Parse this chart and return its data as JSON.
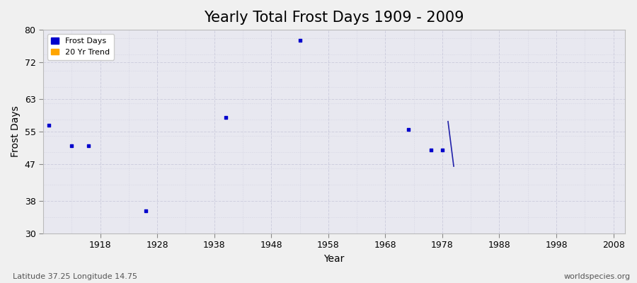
{
  "title": "Yearly Total Frost Days 1909 - 2009",
  "xlabel": "Year",
  "ylabel": "Frost Days",
  "xlim": [
    1908,
    2010
  ],
  "ylim": [
    30,
    80
  ],
  "yticks": [
    30,
    38,
    47,
    55,
    63,
    72,
    80
  ],
  "xticks": [
    1918,
    1928,
    1938,
    1948,
    1958,
    1968,
    1978,
    1988,
    1998,
    2008
  ],
  "frost_days_x": [
    1909,
    1913,
    1916,
    1926,
    1940,
    1953,
    1972,
    1976,
    1978
  ],
  "frost_days_y": [
    56.5,
    51.5,
    51.5,
    35.5,
    58.5,
    77.5,
    55.5,
    50.5,
    50.5
  ],
  "trend_x": [
    1979,
    1980
  ],
  "trend_y": [
    57.5,
    46.5
  ],
  "scatter_color": "#0000cc",
  "trend_color": "#2222aa",
  "legend_frost_color": "#0000cc",
  "legend_trend_color": "#FFA500",
  "fig_bg_color": "#f0f0f0",
  "plot_bg_color": "#e8e8f0",
  "grid_color": "#ccccdd",
  "footer_left": "Latitude 37.25 Longitude 14.75",
  "footer_right": "worldspecies.org",
  "title_fontsize": 15,
  "axis_label_fontsize": 10,
  "tick_fontsize": 9,
  "footer_fontsize": 8,
  "legend_fontsize": 8
}
